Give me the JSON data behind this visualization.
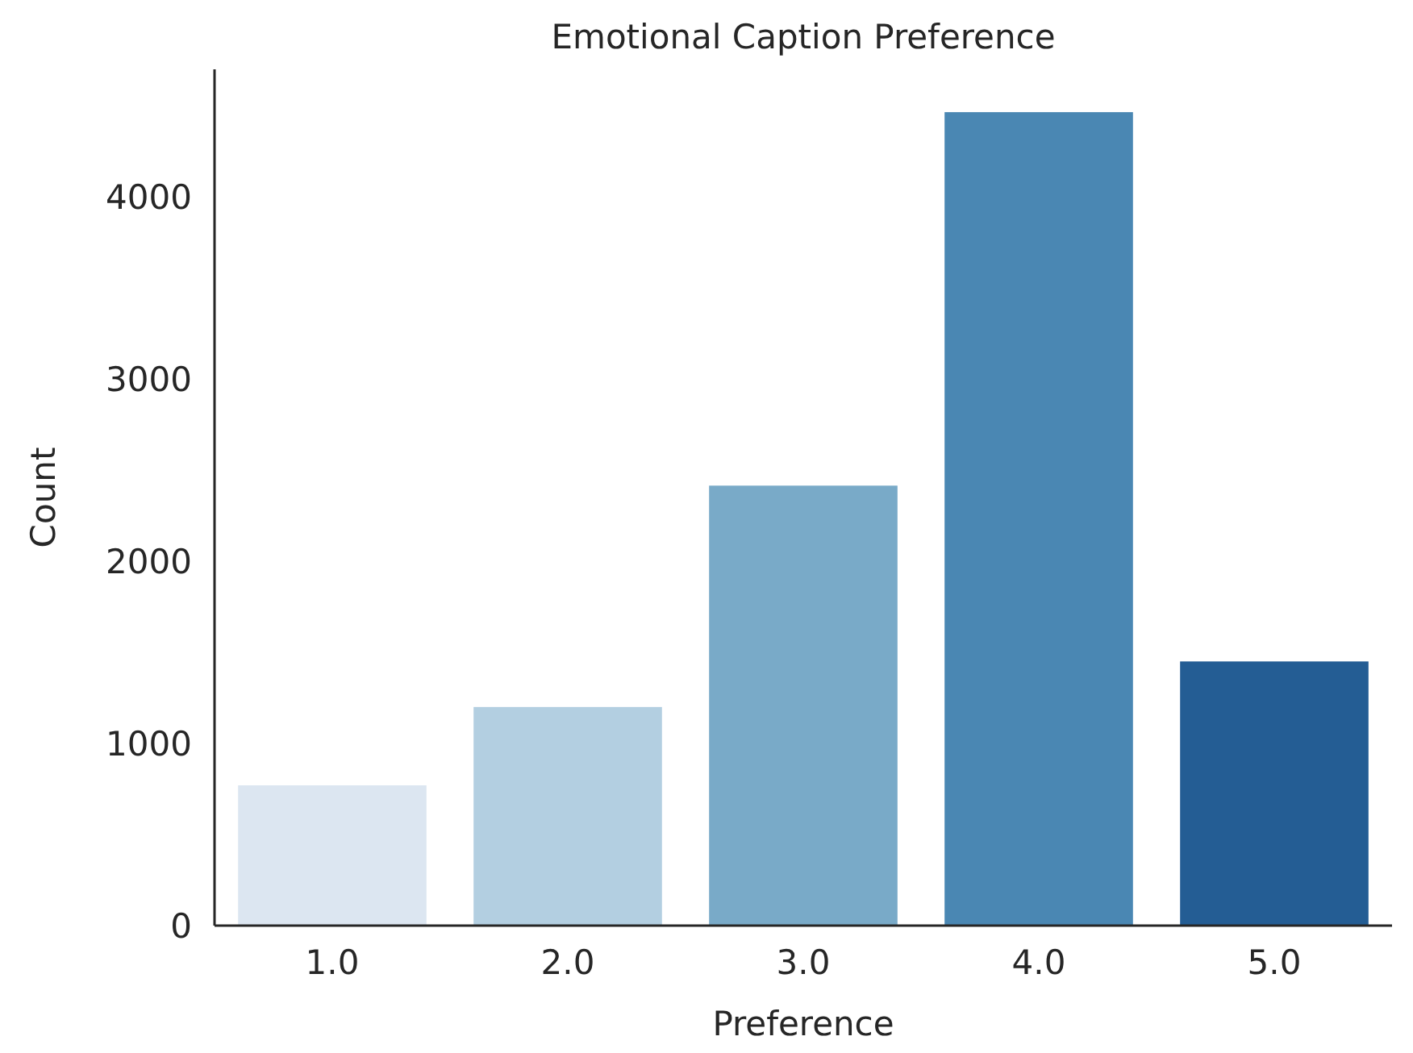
{
  "chart_data": {
    "type": "bar",
    "title": "Emotional Caption Preference",
    "xlabel": "Preference",
    "ylabel": "Count",
    "categories": [
      "1.0",
      "2.0",
      "3.0",
      "4.0",
      "5.0"
    ],
    "values": [
      770,
      1200,
      2415,
      4465,
      1450
    ],
    "colors": [
      "#dce6f1",
      "#b3cfe1",
      "#79aac8",
      "#4a87b3",
      "#245d94"
    ],
    "ylim": [
      0,
      4700
    ],
    "yticks": [
      0,
      1000,
      2000,
      3000,
      4000
    ],
    "grid": false
  }
}
